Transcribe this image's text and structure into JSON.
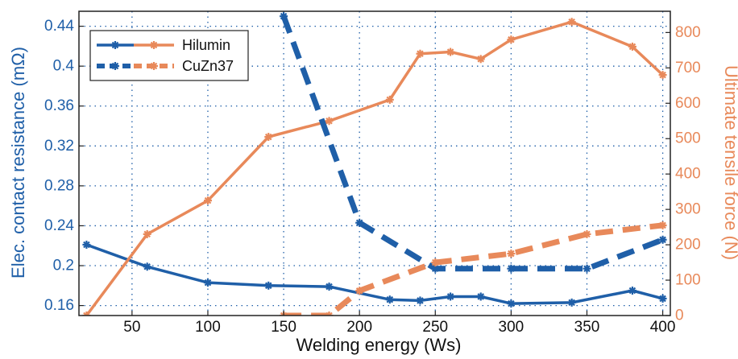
{
  "chart_data": {
    "type": "line",
    "title": "",
    "xlabel": "Welding energy (Ws)",
    "ylabel_left": "Elec. contact resistance (mΩ)",
    "ylabel_right": "Ultimate tensile force (N)",
    "xlim": [
      15,
      405
    ],
    "ylim_left": [
      0.15,
      0.455
    ],
    "ylim_right": [
      0,
      860
    ],
    "x_ticks": [
      50,
      100,
      150,
      200,
      250,
      300,
      350,
      400
    ],
    "y_left_ticks": [
      0.16,
      0.2,
      0.24,
      0.28,
      0.32,
      0.36,
      0.4,
      0.44
    ],
    "y_left_tick_labels": [
      "0.16",
      "0.2",
      "0.24",
      "0.28",
      "0.32",
      "0.36",
      "0.4",
      "0.44"
    ],
    "y_right_ticks": [
      0,
      100,
      200,
      300,
      400,
      500,
      600,
      700,
      800
    ],
    "grid": true,
    "legend_position": "top-left",
    "colors": {
      "resistance": "#1f5fa8",
      "force": "#e8895a"
    },
    "legend": [
      {
        "label": "Hilumin",
        "style": "solid"
      },
      {
        "label": "CuZn37",
        "style": "dashed"
      }
    ],
    "series": [
      {
        "material": "Hilumin",
        "quantity": "resistance",
        "axis": "left",
        "style": "solid",
        "x": [
          20,
          60,
          100,
          140,
          180,
          220,
          240,
          260,
          280,
          300,
          340,
          380,
          400
        ],
        "y": [
          0.221,
          0.199,
          0.183,
          0.18,
          0.179,
          0.166,
          0.165,
          0.169,
          0.169,
          0.162,
          0.163,
          0.175,
          0.167
        ]
      },
      {
        "material": "Hilumin",
        "quantity": "force",
        "axis": "right",
        "style": "solid",
        "x": [
          20,
          60,
          100,
          140,
          180,
          220,
          240,
          260,
          280,
          300,
          340,
          380,
          400
        ],
        "y": [
          0,
          230,
          325,
          505,
          550,
          610,
          740,
          745,
          725,
          780,
          830,
          760,
          680
        ]
      },
      {
        "material": "CuZn37",
        "quantity": "resistance",
        "axis": "left",
        "style": "dashed",
        "x": [
          150,
          200,
          250,
          300,
          350,
          400
        ],
        "y": [
          0.45,
          0.243,
          0.197,
          0.197,
          0.197,
          0.226
        ]
      },
      {
        "material": "CuZn37",
        "quantity": "force",
        "axis": "right",
        "style": "dashed",
        "x": [
          150,
          180,
          200,
          250,
          300,
          350,
          400
        ],
        "y": [
          0,
          0,
          70,
          150,
          175,
          230,
          255
        ]
      }
    ]
  }
}
